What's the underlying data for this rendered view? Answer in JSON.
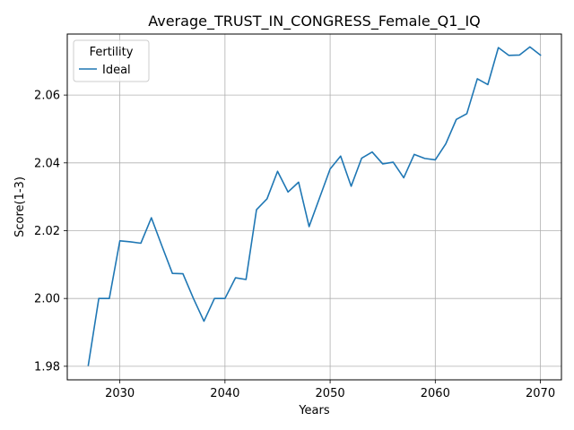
{
  "chart_data": {
    "type": "line",
    "title": "Average_TRUST_IN_CONGRESS_Female_Q1_IQ",
    "xlabel": "Years",
    "ylabel": "Score(1-3)",
    "xlim": [
      2025,
      2072
    ],
    "ylim": [
      1.976,
      2.078
    ],
    "xticks": [
      2030,
      2040,
      2050,
      2060,
      2070
    ],
    "yticks": [
      1.98,
      2.0,
      2.02,
      2.04,
      2.06
    ],
    "ytick_labels": [
      "1.98",
      "2.00",
      "2.02",
      "2.04",
      "2.06"
    ],
    "grid": true,
    "legend": {
      "title": "Fertility",
      "placement": "top-left"
    },
    "series": [
      {
        "name": "Ideal",
        "color": "#1f77b4",
        "x": [
          2027,
          2028,
          2029,
          2030,
          2031,
          2032,
          2033,
          2034,
          2035,
          2036,
          2037,
          2038,
          2039,
          2040,
          2041,
          2042,
          2043,
          2044,
          2045,
          2046,
          2047,
          2048,
          2049,
          2050,
          2051,
          2052,
          2053,
          2054,
          2055,
          2056,
          2057,
          2058,
          2059,
          2060,
          2061,
          2062,
          2063,
          2064,
          2065,
          2066,
          2067,
          2068,
          2069,
          2070
        ],
        "y": [
          1.9803,
          2.0,
          2.0,
          2.017,
          2.0167,
          2.0163,
          2.0238,
          2.0155,
          2.0074,
          2.0073,
          2.0,
          1.9933,
          2.0,
          2.0,
          2.0061,
          2.0056,
          2.0262,
          2.0294,
          2.0375,
          2.0314,
          2.0343,
          2.0212,
          2.0297,
          2.0382,
          2.042,
          2.0331,
          2.0414,
          2.0432,
          2.0397,
          2.0402,
          2.0356,
          2.0425,
          2.0413,
          2.0409,
          2.0456,
          2.0528,
          2.0545,
          2.0648,
          2.0631,
          2.074,
          2.0717,
          2.0718,
          2.0742,
          2.0718
        ]
      }
    ]
  }
}
